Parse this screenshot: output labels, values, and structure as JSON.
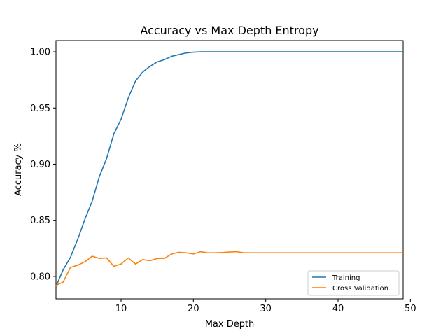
{
  "chart_data": {
    "type": "line",
    "title": "Accuracy vs Max Depth Entropy",
    "xlabel": "Max Depth",
    "ylabel": "Accuracy %",
    "xlim": [
      1,
      49
    ],
    "ylim": [
      0.78,
      1.01
    ],
    "xticks": [
      10,
      20,
      30,
      40,
      50
    ],
    "yticks": [
      0.8,
      0.85,
      0.9,
      0.95,
      1.0
    ],
    "ytick_labels": [
      "0.80",
      "0.85",
      "0.90",
      "0.95",
      "1.00"
    ],
    "legend_position": "lower-right",
    "grid": false,
    "x": [
      1,
      2,
      3,
      4,
      5,
      6,
      7,
      8,
      9,
      10,
      11,
      12,
      13,
      14,
      15,
      16,
      17,
      18,
      19,
      20,
      21,
      22,
      23,
      24,
      25,
      26,
      27,
      28,
      29,
      30,
      31,
      32,
      33,
      34,
      35,
      36,
      37,
      38,
      39,
      40,
      41,
      42,
      43,
      44,
      45,
      46,
      47,
      48,
      49
    ],
    "series": [
      {
        "name": "Training",
        "color": "#1f77b4",
        "values": [
          0.791,
          0.806,
          0.817,
          0.833,
          0.851,
          0.867,
          0.889,
          0.905,
          0.927,
          0.94,
          0.959,
          0.974,
          0.982,
          0.987,
          0.991,
          0.993,
          0.996,
          0.9975,
          0.999,
          0.9997,
          1.0,
          1.0,
          1.0,
          1.0,
          1.0,
          1.0,
          1.0,
          1.0,
          1.0,
          1.0,
          1.0,
          1.0,
          1.0,
          1.0,
          1.0,
          1.0,
          1.0,
          1.0,
          1.0,
          1.0,
          1.0,
          1.0,
          1.0,
          1.0,
          1.0,
          1.0,
          1.0,
          1.0,
          1.0
        ]
      },
      {
        "name": "Cross Validation",
        "color": "#ff7f0e",
        "values": [
          0.792,
          0.795,
          0.808,
          0.81,
          0.813,
          0.818,
          0.816,
          0.8165,
          0.809,
          0.811,
          0.8165,
          0.811,
          0.815,
          0.814,
          0.816,
          0.816,
          0.82,
          0.8215,
          0.821,
          0.82,
          0.822,
          0.821,
          0.821,
          0.8213,
          0.8217,
          0.822,
          0.821,
          0.821,
          0.821,
          0.821,
          0.821,
          0.821,
          0.821,
          0.821,
          0.821,
          0.821,
          0.821,
          0.821,
          0.821,
          0.821,
          0.821,
          0.821,
          0.821,
          0.821,
          0.821,
          0.821,
          0.821,
          0.821,
          0.821
        ]
      }
    ]
  }
}
